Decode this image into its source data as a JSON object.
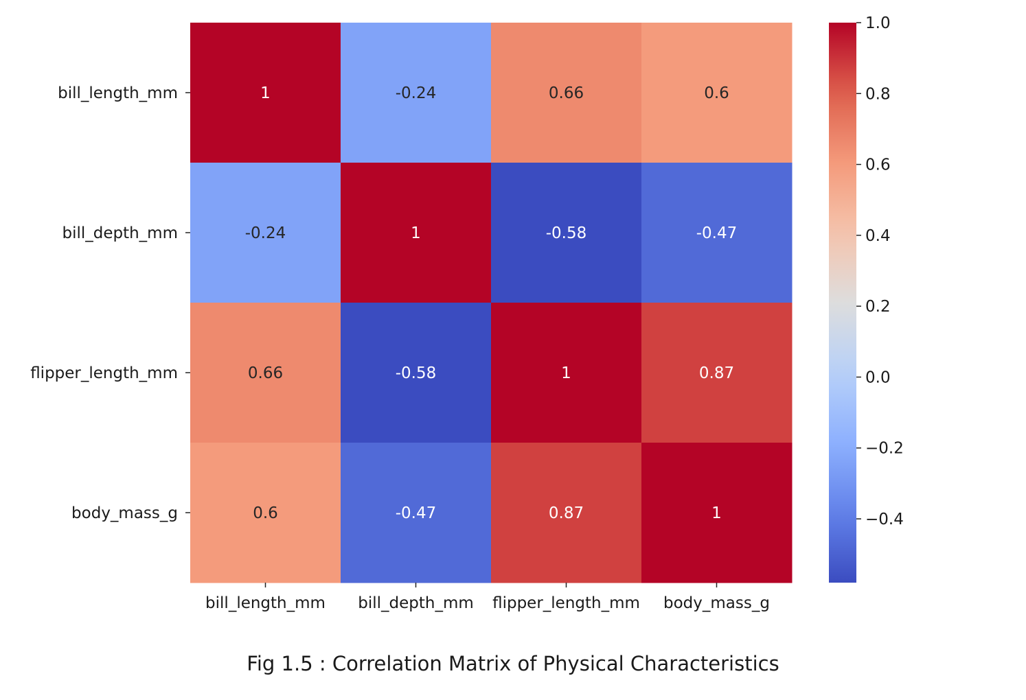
{
  "chart_data": {
    "type": "heatmap",
    "colormap": "coolwarm",
    "rows": [
      "bill_length_mm",
      "bill_depth_mm",
      "flipper_length_mm",
      "body_mass_g"
    ],
    "columns": [
      "bill_length_mm",
      "bill_depth_mm",
      "flipper_length_mm",
      "body_mass_g"
    ],
    "values": [
      [
        1.0,
        -0.24,
        0.66,
        0.6
      ],
      [
        -0.24,
        1.0,
        -0.58,
        -0.47
      ],
      [
        0.66,
        -0.58,
        1.0,
        0.87
      ],
      [
        0.6,
        -0.47,
        0.87,
        1.0
      ]
    ],
    "annotations": [
      [
        "1",
        "-0.24",
        "0.66",
        "0.6"
      ],
      [
        "-0.24",
        "1",
        "-0.58",
        "-0.47"
      ],
      [
        "0.66",
        "-0.58",
        "1",
        "0.87"
      ],
      [
        "0.6",
        "-0.47",
        "0.87",
        "1"
      ]
    ],
    "colorbar": {
      "range": [
        -0.58,
        1.0
      ],
      "ticks": [
        1.0,
        0.8,
        0.6,
        0.4,
        0.2,
        0.0,
        -0.2,
        -0.4
      ],
      "tick_labels": [
        "1.0",
        "0.8",
        "0.6",
        "0.4",
        "0.2",
        "0.0",
        "−0.2",
        "−0.4"
      ]
    },
    "caption": "Fig 1.5 : Correlation Matrix of Physical Characteristics"
  }
}
